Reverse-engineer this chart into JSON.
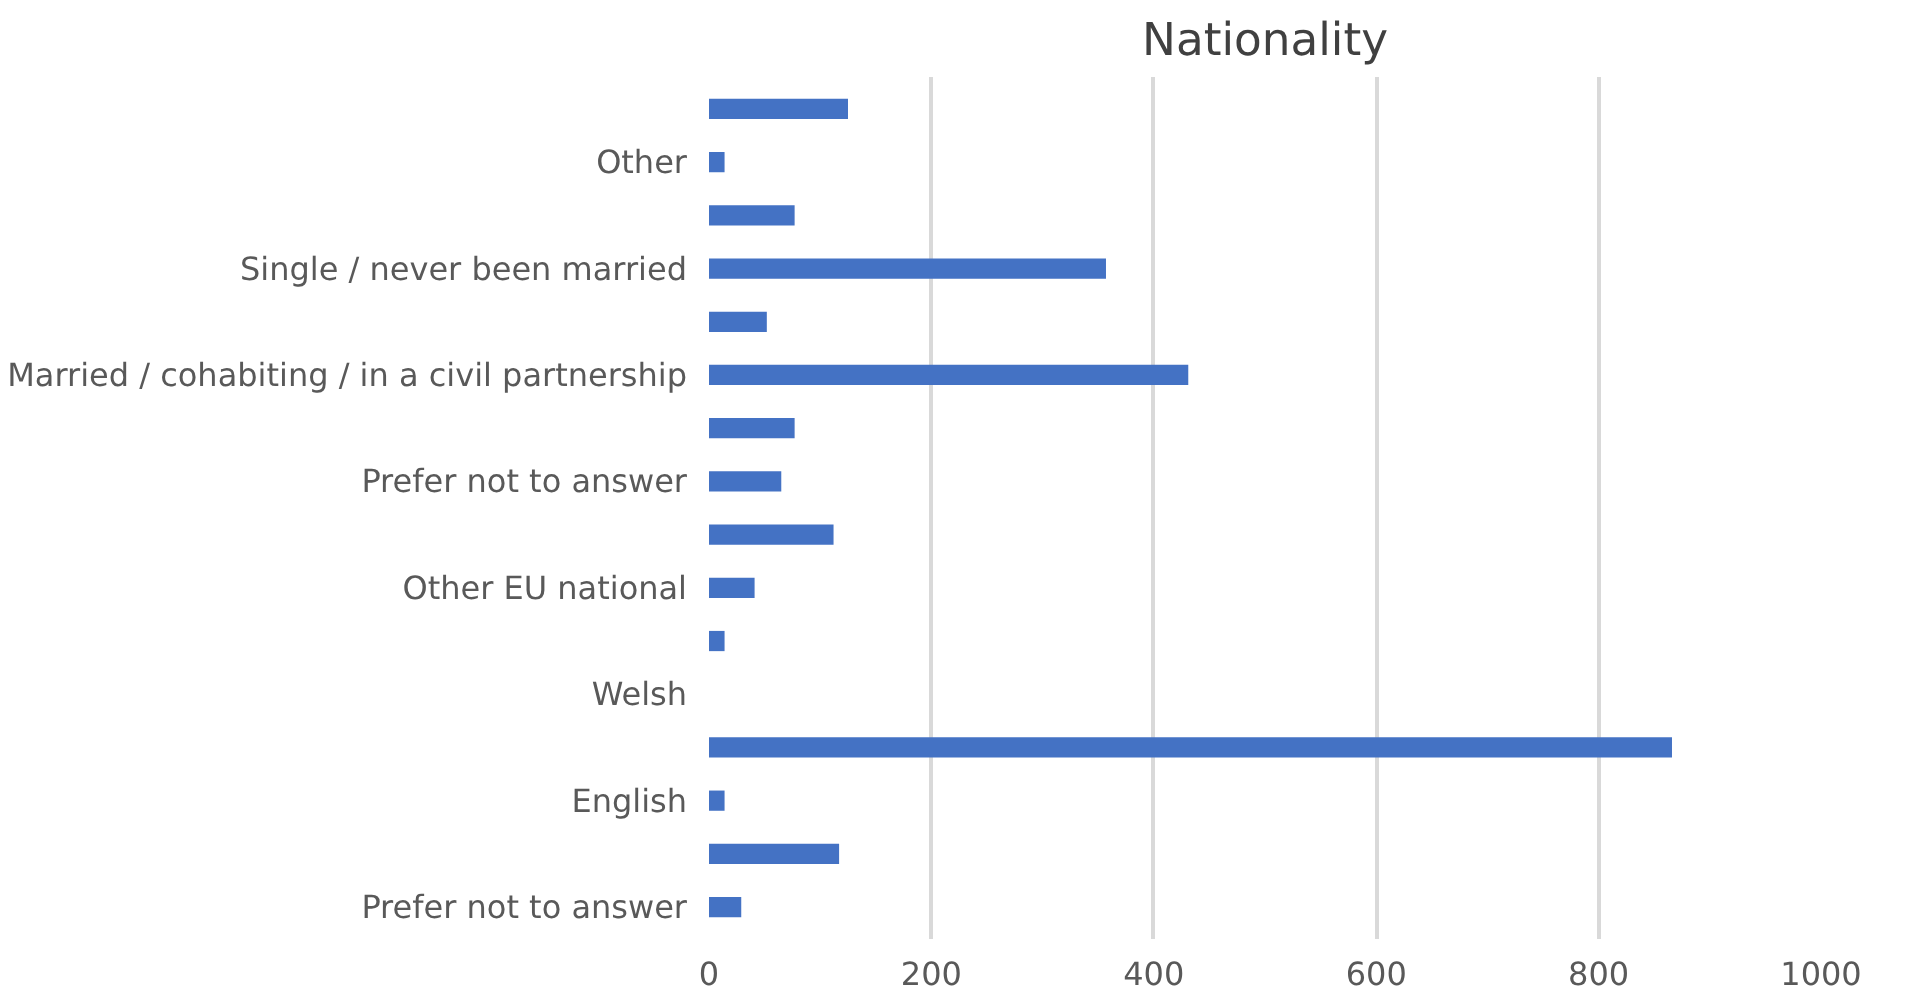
{
  "chart_data": {
    "type": "bar",
    "orientation": "horizontal",
    "title": "Nationality",
    "categories": [
      null,
      "Other",
      null,
      "Single / never been married",
      null,
      "Married / cohabiting / in a civil partnership",
      null,
      "Prefer not to answer",
      null,
      "Other EU national",
      null,
      "Welsh",
      null,
      "English",
      null,
      "Prefer not to answer"
    ],
    "values": [
      125,
      14,
      77,
      357,
      52,
      431,
      77,
      65,
      112,
      41,
      14,
      0,
      866,
      14,
      117,
      29
    ],
    "color": "#4472c4",
    "xlim": [
      0,
      1000
    ],
    "xticks": [
      0,
      200,
      400,
      600,
      800,
      1000
    ],
    "grid": "x"
  }
}
